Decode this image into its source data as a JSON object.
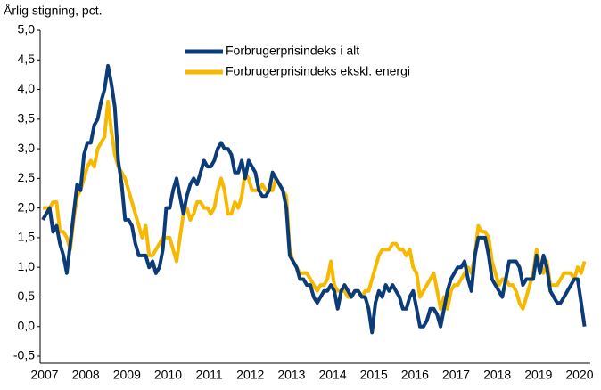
{
  "chart_data": {
    "type": "line",
    "y_label": "Årlig stigning, pct.",
    "categories": [
      "2007",
      null,
      null,
      null,
      null,
      null,
      null,
      null,
      null,
      null,
      null,
      null,
      "2008",
      null,
      null,
      null,
      null,
      null,
      null,
      null,
      null,
      null,
      null,
      null,
      "2009",
      null,
      null,
      null,
      null,
      null,
      null,
      null,
      null,
      null,
      null,
      null,
      "2010",
      null,
      null,
      null,
      null,
      null,
      null,
      null,
      null,
      null,
      null,
      null,
      "2011",
      null,
      null,
      null,
      null,
      null,
      null,
      null,
      null,
      null,
      null,
      null,
      "2012",
      null,
      null,
      null,
      null,
      null,
      null,
      null,
      null,
      null,
      null,
      null,
      "2013",
      null,
      null,
      null,
      null,
      null,
      null,
      null,
      null,
      null,
      null,
      null,
      "2014",
      null,
      null,
      null,
      null,
      null,
      null,
      null,
      null,
      null,
      null,
      null,
      "2015",
      null,
      null,
      null,
      null,
      null,
      null,
      null,
      null,
      null,
      null,
      null,
      "2016",
      null,
      null,
      null,
      null,
      null,
      null,
      null,
      null,
      null,
      null,
      null,
      "2017",
      null,
      null,
      null,
      null,
      null,
      null,
      null,
      null,
      null,
      null,
      null,
      "2018",
      null,
      null,
      null,
      null,
      null,
      null,
      null,
      null,
      null,
      null,
      null,
      "2019",
      null,
      null,
      null,
      null,
      null,
      null,
      null,
      null,
      null,
      null,
      null,
      "2020",
      null,
      null
    ],
    "series": [
      {
        "name": "Forbrugerprisindeks i alt",
        "color": "#0b3c78",
        "values": [
          1.8,
          1.9,
          2.0,
          1.6,
          1.7,
          1.4,
          1.2,
          0.9,
          1.4,
          1.9,
          2.4,
          2.3,
          2.9,
          3.1,
          3.1,
          3.4,
          3.5,
          3.8,
          4.0,
          4.4,
          4.1,
          3.7,
          2.8,
          2.4,
          1.8,
          1.8,
          1.7,
          1.4,
          1.2,
          1.2,
          1.2,
          1.0,
          1.1,
          0.9,
          1.0,
          1.3,
          2.0,
          2.0,
          2.3,
          2.5,
          2.2,
          1.9,
          2.2,
          2.4,
          2.5,
          2.4,
          2.6,
          2.8,
          2.7,
          2.7,
          2.8,
          3.0,
          3.1,
          3.0,
          3.0,
          2.9,
          2.6,
          2.6,
          2.8,
          2.5,
          2.8,
          2.7,
          2.6,
          2.3,
          2.2,
          2.2,
          2.3,
          2.6,
          2.5,
          2.4,
          2.3,
          2.0,
          1.2,
          1.1,
          1.0,
          0.8,
          0.8,
          0.7,
          0.7,
          0.5,
          0.4,
          0.5,
          0.6,
          0.6,
          0.7,
          0.6,
          0.3,
          0.6,
          0.7,
          0.6,
          0.5,
          0.6,
          0.6,
          0.5,
          0.5,
          0.3,
          -0.1,
          0.4,
          0.6,
          0.5,
          0.7,
          0.6,
          0.7,
          0.6,
          0.5,
          0.3,
          0.3,
          0.5,
          0.6,
          0.3,
          0.0,
          0.0,
          0.1,
          0.3,
          0.3,
          0.2,
          0.0,
          0.3,
          0.6,
          0.8,
          0.9,
          1.0,
          1.0,
          1.1,
          0.8,
          0.6,
          1.2,
          1.5,
          1.5,
          1.5,
          1.2,
          0.8,
          0.7,
          0.6,
          0.5,
          0.8,
          1.1,
          1.1,
          1.1,
          1.0,
          0.7,
          0.8,
          0.8,
          0.8,
          1.2,
          0.9,
          1.2,
          1.0,
          0.6,
          0.5,
          0.4,
          0.4,
          0.5,
          0.6,
          0.7,
          0.8,
          0.8,
          0.4,
          0.0
        ]
      },
      {
        "name": "Forbrugerprisindeks ekskl. energi",
        "color": "#f7b900",
        "values": [
          2.0,
          2.0,
          2.0,
          2.1,
          2.1,
          1.6,
          1.6,
          1.5,
          1.3,
          1.8,
          2.2,
          2.3,
          2.5,
          2.7,
          2.8,
          2.7,
          3.0,
          3.1,
          3.2,
          3.8,
          3.3,
          2.9,
          2.7,
          2.6,
          2.5,
          2.3,
          2.1,
          1.9,
          1.7,
          1.5,
          1.7,
          1.2,
          1.2,
          1.3,
          1.4,
          1.5,
          1.5,
          1.5,
          1.3,
          1.1,
          1.5,
          1.9,
          2.0,
          1.8,
          1.9,
          2.1,
          2.1,
          2.0,
          2.0,
          1.9,
          2.0,
          2.3,
          2.5,
          2.3,
          1.9,
          1.9,
          2.1,
          2.0,
          2.2,
          2.6,
          2.5,
          2.3,
          2.3,
          2.3,
          2.4,
          2.3,
          2.3,
          2.3,
          2.5,
          2.4,
          2.3,
          2.2,
          1.3,
          1.1,
          1.0,
          0.9,
          0.9,
          0.9,
          0.8,
          0.7,
          0.6,
          0.7,
          0.7,
          0.8,
          1.1,
          0.7,
          0.6,
          0.6,
          0.6,
          0.5,
          0.5,
          0.6,
          0.6,
          0.5,
          0.6,
          0.6,
          0.8,
          1.0,
          1.2,
          1.3,
          1.3,
          1.3,
          1.4,
          1.4,
          1.3,
          1.3,
          1.2,
          1.3,
          1.0,
          0.9,
          0.5,
          0.6,
          0.7,
          0.8,
          0.9,
          0.6,
          0.3,
          0.5,
          0.3,
          0.6,
          0.7,
          0.7,
          0.8,
          0.9,
          1.0,
          0.9,
          1.2,
          1.7,
          1.6,
          1.6,
          1.5,
          1.1,
          0.9,
          0.7,
          0.8,
          0.8,
          0.7,
          0.7,
          0.6,
          0.4,
          0.3,
          0.5,
          0.7,
          0.9,
          1.3,
          1.0,
          0.9,
          1.1,
          0.7,
          0.7,
          0.7,
          0.8,
          0.9,
          0.9,
          0.9,
          0.8,
          1.0,
          0.9,
          1.1
        ]
      }
    ],
    "ylim": [
      -0.5,
      5.0
    ],
    "yticks": [
      {
        "value": -0.5,
        "label": "-0,5"
      },
      {
        "value": 0,
        "label": "0,0"
      },
      {
        "value": 0.5,
        "label": "0,5"
      },
      {
        "value": 1.0,
        "label": "1,0"
      },
      {
        "value": 1.5,
        "label": "1,5"
      },
      {
        "value": 2.0,
        "label": "2,0"
      },
      {
        "value": 2.5,
        "label": "2,5"
      },
      {
        "value": 3.0,
        "label": "3,0"
      },
      {
        "value": 3.5,
        "label": "3,5"
      },
      {
        "value": 4.0,
        "label": "4,0"
      },
      {
        "value": 4.5,
        "label": "4,5"
      },
      {
        "value": 5.0,
        "label": "5,0"
      }
    ],
    "grid": false,
    "legend": "top"
  }
}
